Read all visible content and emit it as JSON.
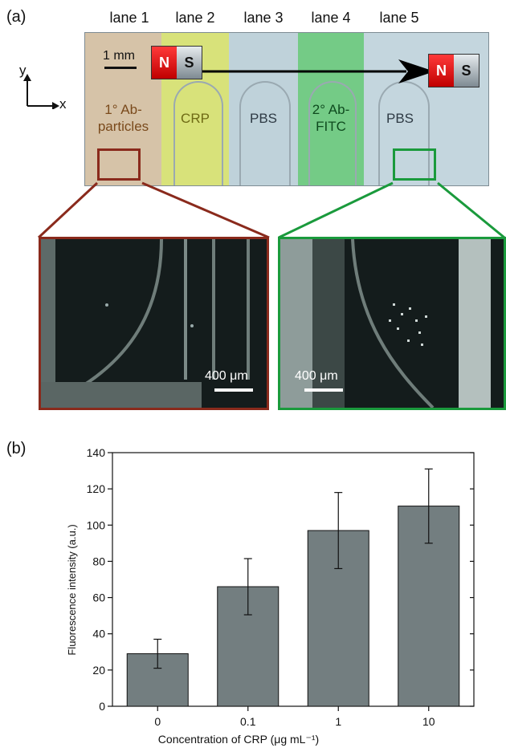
{
  "panel_a": {
    "label": "(a)",
    "lanes": [
      "lane 1",
      "lane 2",
      "lane 3",
      "lane 4",
      "lane 5"
    ],
    "scale_label": "1 mm",
    "axis_y": "y",
    "axis_x": "x",
    "magnet_n": "N",
    "magnet_s": "S",
    "lane_contents": [
      {
        "line1": "1° Ab-",
        "line2": "particles"
      },
      {
        "line1": "CRP",
        "line2": ""
      },
      {
        "line1": "PBS",
        "line2": ""
      },
      {
        "line1": "2° Ab-",
        "line2": "FITC"
      },
      {
        "line1": "PBS",
        "line2": ""
      }
    ],
    "zoom_scale_left": "400 μm",
    "zoom_scale_right": "400 μm",
    "colors": {
      "lane1": "#d6c3a8",
      "lane2": "#d8e27a",
      "lane3": "#bfd2da",
      "lane4": "#74cb86",
      "lane5": "#c4d6de",
      "left_frame": "#8a2a1c",
      "right_frame": "#1a9a3c"
    }
  },
  "panel_b": {
    "label": "(b)"
  },
  "chart_data": {
    "type": "bar",
    "categories": [
      "0",
      "0.1",
      "1",
      "10"
    ],
    "values": [
      29,
      66,
      97,
      110.5
    ],
    "errors": [
      8,
      15.5,
      21,
      20.5
    ],
    "xlabel": "Concentration of CRP (μg mL⁻¹)",
    "ylabel": "Fluorescence intensity (a.u.)",
    "ylim": [
      0,
      140
    ],
    "yticks": [
      0,
      20,
      40,
      60,
      80,
      100,
      120,
      140
    ],
    "bar_color": "#737e80",
    "grid": false
  }
}
